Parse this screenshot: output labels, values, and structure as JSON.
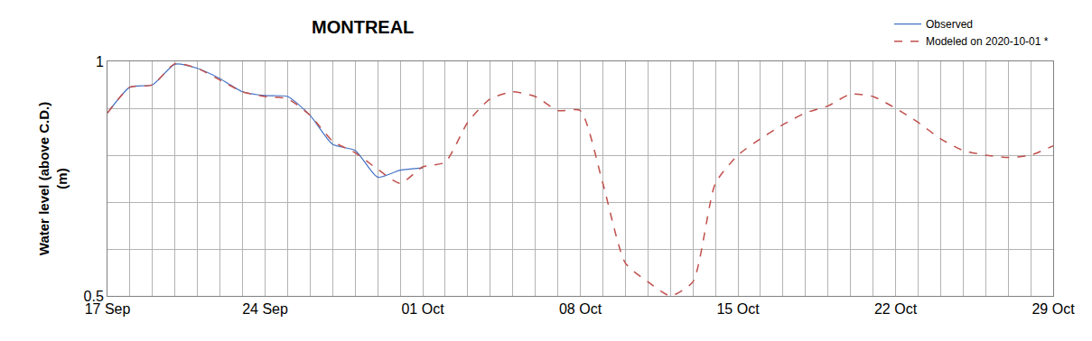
{
  "chart_data": {
    "type": "line",
    "title": "MONTREAL",
    "y_label": "Water level (above C.D.)\n(m)",
    "categories": [
      "17 Sep",
      null,
      null,
      null,
      null,
      null,
      null,
      "24 Sep",
      null,
      null,
      null,
      null,
      null,
      null,
      "01 Oct",
      null,
      null,
      null,
      null,
      null,
      null,
      "08 Oct",
      null,
      null,
      null,
      null,
      null,
      null,
      "15 Oct",
      null,
      null,
      null,
      null,
      null,
      null,
      "22 Oct",
      null,
      null,
      null,
      null,
      null,
      null,
      "29 Oct"
    ],
    "series": [
      {
        "name": "Observed",
        "color": "#4472c4",
        "line_style": "solid",
        "values": [
          0.89,
          0.945,
          0.95,
          0.994,
          0.985,
          0.963,
          0.935,
          0.927,
          0.925,
          0.885,
          0.823,
          0.81,
          0.753,
          0.768,
          0.773,
          null,
          null,
          null,
          null,
          null,
          null,
          null,
          null,
          null,
          null,
          null,
          null,
          null,
          null,
          null,
          null,
          null,
          null,
          null,
          null,
          null,
          null,
          null,
          null,
          null,
          null,
          null,
          null
        ]
      },
      {
        "name": "Modeled on 2020-10-01 *",
        "color": "#c0504d",
        "line_style": "dash",
        "values": [
          0.89,
          0.945,
          0.95,
          0.995,
          0.985,
          0.96,
          0.935,
          0.925,
          0.92,
          0.885,
          0.83,
          0.805,
          0.77,
          0.74,
          0.775,
          0.785,
          0.87,
          0.92,
          0.935,
          0.925,
          0.895,
          0.895,
          0.74,
          0.57,
          0.53,
          0.5,
          0.53,
          0.74,
          0.8,
          0.835,
          0.865,
          0.89,
          0.905,
          0.93,
          0.925,
          0.9,
          0.87,
          0.835,
          0.81,
          0.8,
          0.795,
          0.8,
          0.82
        ]
      }
    ],
    "ylim": [
      0.5,
      1
    ],
    "yticks": [
      0.5,
      {
        "value": 0.6,
        "label": null
      },
      {
        "value": 0.7,
        "label": null
      },
      {
        "value": 0.8,
        "label": null
      },
      {
        "value": 0.9,
        "label": null
      },
      1
    ],
    "grid": true,
    "legend": "top right"
  }
}
